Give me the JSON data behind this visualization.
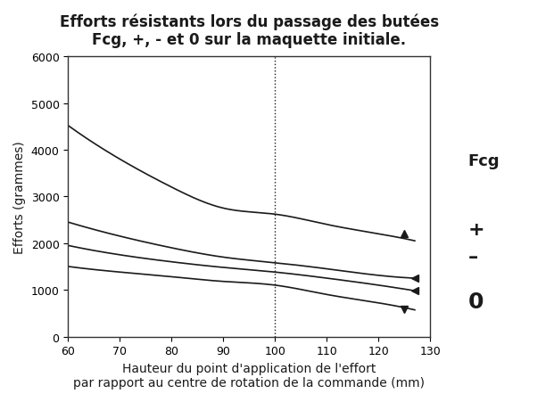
{
  "title_line1": "Efforts résistants lors du passage des butées",
  "title_line2": "Fcg, +, - et 0 sur la maquette initiale.",
  "xlabel_line1": "Hauteur du point d'application de l'effort",
  "xlabel_line2": "par rapport au centre de rotation de la commande (mm)",
  "ylabel": "Efforts (grammes)",
  "xlim": [
    60,
    130
  ],
  "ylim": [
    0,
    6000
  ],
  "xticks": [
    60,
    70,
    80,
    90,
    100,
    110,
    120,
    130
  ],
  "yticks": [
    0,
    1000,
    2000,
    3000,
    4000,
    5000,
    6000
  ],
  "vline_x": 100,
  "curves": {
    "Fcg": {
      "x": [
        60,
        70,
        80,
        90,
        100,
        110,
        120,
        127
      ],
      "y": [
        4520,
        3800,
        3200,
        2750,
        2620,
        2400,
        2200,
        2050
      ],
      "marker_x": 125,
      "marker_y": 2200,
      "label": "Fcg"
    },
    "plus": {
      "x": [
        60,
        70,
        80,
        90,
        100,
        110,
        120,
        127
      ],
      "y": [
        2450,
        2150,
        1900,
        1700,
        1580,
        1450,
        1310,
        1250
      ],
      "marker_x": 127,
      "marker_y": 1250,
      "label": "+"
    },
    "minus": {
      "x": [
        60,
        70,
        80,
        90,
        100,
        110,
        120,
        127
      ],
      "y": [
        1950,
        1750,
        1600,
        1480,
        1380,
        1250,
        1100,
        980
      ],
      "marker_x": 127,
      "marker_y": 980,
      "label": "-"
    },
    "zero": {
      "x": [
        60,
        70,
        80,
        90,
        100,
        110,
        120,
        127
      ],
      "y": [
        1500,
        1380,
        1280,
        1180,
        1100,
        900,
        720,
        570
      ],
      "marker_x": 125,
      "marker_y": 580,
      "label": "0"
    }
  },
  "background_color": "#ffffff",
  "line_color": "#1a1a1a",
  "label_color": "#1a1a1a",
  "title_fontsize": 12,
  "axis_label_fontsize": 10,
  "tick_fontsize": 9
}
